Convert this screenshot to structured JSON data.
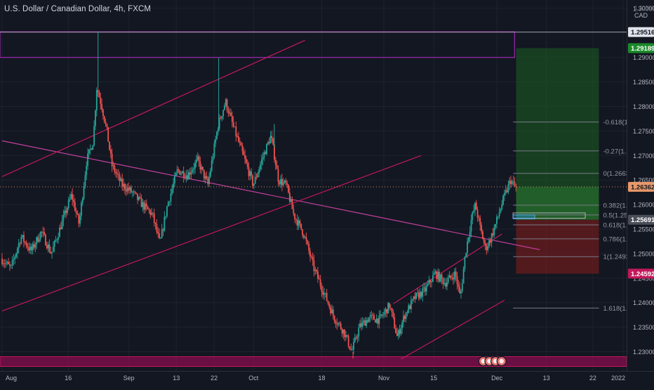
{
  "header": {
    "symbol_title": "U.S. Dollar / Canadian Dollar, 4h, FXCM",
    "currency": "CAD",
    "currency_top_tick": "1.30500"
  },
  "colors": {
    "background": "#131722",
    "grid": "#1e222d",
    "axis_text": "#b2b5be",
    "bull_candle": "#26a69a",
    "bear_candle": "#ef5350",
    "trendline": "#c2185b",
    "resistance_box": "#9c27b0",
    "support_box": "#880e4f",
    "target_zone": "#1b5e20",
    "stop_zone": "#7f1d1d",
    "fib_line": "#787b86",
    "badge_last": "#e8996a",
    "badge_target": "#1b8a2a",
    "badge_stop": "#c2185b",
    "badge_mark": "#e0e3eb",
    "badge_entry": "#4a4e59"
  },
  "chart_data": {
    "type": "candlestick",
    "instrument": "U.S. Dollar / Canadian Dollar",
    "timeframe": "4h",
    "source": "FXCM",
    "ylim": [
      1.2225,
      1.3052
    ],
    "y_ticks": [
      "1.30000",
      "1.29500",
      "1.29000",
      "1.28500",
      "1.28000",
      "1.27500",
      "1.27000",
      "1.26500",
      "1.26000",
      "1.25500",
      "1.25000",
      "1.24500",
      "1.24000",
      "1.23500",
      "1.23000",
      "1.22500"
    ],
    "x_ticks": [
      "Aug",
      "16",
      "Sep",
      "13",
      "22",
      "Oct",
      "18",
      "Nov",
      "15",
      "Dec",
      "13",
      "22",
      "2022"
    ],
    "price_path": [
      {
        "t": 0.0,
        "p": 1.249
      },
      {
        "t": 2.0,
        "p": 1.247
      },
      {
        "t": 4.0,
        "p": 1.2535
      },
      {
        "t": 6.0,
        "p": 1.2505
      },
      {
        "t": 8.0,
        "p": 1.2545
      },
      {
        "t": 10.0,
        "p": 1.25
      },
      {
        "t": 12.0,
        "p": 1.256
      },
      {
        "t": 14.0,
        "p": 1.262
      },
      {
        "t": 15.5,
        "p": 1.256
      },
      {
        "t": 17.0,
        "p": 1.269
      },
      {
        "t": 18.3,
        "p": 1.273
      },
      {
        "t": 19.0,
        "p": 1.284
      },
      {
        "t": 20.0,
        "p": 1.28
      },
      {
        "t": 21.0,
        "p": 1.275
      },
      {
        "t": 22.0,
        "p": 1.268
      },
      {
        "t": 24.0,
        "p": 1.264
      },
      {
        "t": 26.0,
        "p": 1.2625
      },
      {
        "t": 28.0,
        "p": 1.26
      },
      {
        "t": 30.0,
        "p": 1.258
      },
      {
        "t": 31.5,
        "p": 1.252
      },
      {
        "t": 33.0,
        "p": 1.26
      },
      {
        "t": 35.0,
        "p": 1.267
      },
      {
        "t": 37.0,
        "p": 1.266
      },
      {
        "t": 39.0,
        "p": 1.269
      },
      {
        "t": 41.0,
        "p": 1.264
      },
      {
        "t": 43.0,
        "p": 1.276
      },
      {
        "t": 44.5,
        "p": 1.281
      },
      {
        "t": 46.0,
        "p": 1.276
      },
      {
        "t": 48.0,
        "p": 1.27
      },
      {
        "t": 50.0,
        "p": 1.264
      },
      {
        "t": 52.0,
        "p": 1.27
      },
      {
        "t": 53.5,
        "p": 1.274
      },
      {
        "t": 55.0,
        "p": 1.265
      },
      {
        "t": 56.5,
        "p": 1.264
      },
      {
        "t": 58.0,
        "p": 1.258
      },
      {
        "t": 60.0,
        "p": 1.254
      },
      {
        "t": 62.0,
        "p": 1.247
      },
      {
        "t": 64.0,
        "p": 1.242
      },
      {
        "t": 66.0,
        "p": 1.237
      },
      {
        "t": 68.0,
        "p": 1.234
      },
      {
        "t": 69.5,
        "p": 1.23
      },
      {
        "t": 71.0,
        "p": 1.235
      },
      {
        "t": 73.0,
        "p": 1.237
      },
      {
        "t": 75.0,
        "p": 1.2365
      },
      {
        "t": 77.0,
        "p": 1.2395
      },
      {
        "t": 78.5,
        "p": 1.233
      },
      {
        "t": 80.0,
        "p": 1.2375
      },
      {
        "t": 82.0,
        "p": 1.241
      },
      {
        "t": 84.0,
        "p": 1.2425
      },
      {
        "t": 86.0,
        "p": 1.246
      },
      {
        "t": 88.0,
        "p": 1.244
      },
      {
        "t": 90.0,
        "p": 1.246
      },
      {
        "t": 91.0,
        "p": 1.241
      },
      {
        "t": 92.0,
        "p": 1.25
      },
      {
        "t": 93.2,
        "p": 1.257
      },
      {
        "t": 94.0,
        "p": 1.26
      },
      {
        "t": 95.0,
        "p": 1.255
      },
      {
        "t": 96.0,
        "p": 1.251
      },
      {
        "t": 97.0,
        "p": 1.253
      },
      {
        "t": 98.0,
        "p": 1.256
      },
      {
        "t": 99.5,
        "p": 1.261
      },
      {
        "t": 101.0,
        "p": 1.265
      },
      {
        "t": 101.8,
        "p": 1.2636
      }
    ],
    "last_price": "1.26362",
    "horizontal_levels": [
      {
        "name": "resistance",
        "price": "1.29516"
      }
    ],
    "fibonacci": [
      {
        "ratio": "-0.618",
        "price": "1.27684"
      },
      {
        "ratio": "-0.27",
        "price": "1.27094"
      },
      {
        "ratio": "0",
        "price": "1.26636"
      },
      {
        "ratio": "0.382",
        "price": "1.25988"
      },
      {
        "ratio": "0.5",
        "price": "1.25788"
      },
      {
        "ratio": "0.618",
        "price": "1.25587"
      },
      {
        "ratio": "0.786",
        "price": "1.25302"
      },
      {
        "ratio": "1",
        "price": "1.24939"
      },
      {
        "ratio": "1.618",
        "price": "1.23891"
      }
    ],
    "long_position": {
      "target": "1.29189",
      "entry": "1.25691",
      "stop": "1.24592"
    },
    "zones": [
      {
        "name": "resistance-box",
        "from": 1.29,
        "to": 1.2952
      },
      {
        "name": "support-box",
        "from": 1.227,
        "to": 1.229
      }
    ],
    "trendlines": [
      {
        "name": "descending-line",
        "start": [
          0.0,
          1.273
        ],
        "end": [
          106.5,
          1.2508
        ]
      },
      {
        "name": "lower-channel-line",
        "start": [
          0.0,
          1.2383
        ],
        "end": [
          83.0,
          1.27
        ]
      },
      {
        "name": "upper-channel-line",
        "start": [
          0.0,
          1.2657
        ],
        "end": [
          60.0,
          1.2935
        ]
      },
      {
        "name": "wedge-upper-line",
        "start": [
          77.5,
          1.2398
        ],
        "end": [
          99.0,
          1.254
        ]
      },
      {
        "name": "wedge-lower-line",
        "start": [
          79.0,
          1.2285
        ],
        "end": [
          99.5,
          1.2405
        ]
      }
    ]
  },
  "badges": {
    "resistance": "1.29516",
    "target": "1.29189",
    "last": "1.26362",
    "entry": "1.25691",
    "stop": "1.24592"
  }
}
